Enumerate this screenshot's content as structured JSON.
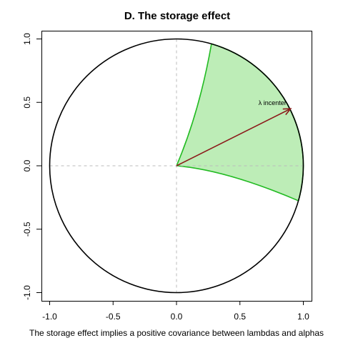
{
  "title": "D. The storage effect",
  "caption": "The storage effect implies a positive covariance between lambdas and alphas",
  "chart_data": {
    "type": "diagram",
    "xlim": [
      -1,
      1
    ],
    "ylim": [
      -1,
      1
    ],
    "x_ticks": [
      -1.0,
      -0.5,
      0.0,
      0.5,
      1.0
    ],
    "x_tick_labels": [
      "-1.0",
      "-0.5",
      "0.0",
      "0.5",
      "1.0"
    ],
    "y_ticks": [
      -1.0,
      -0.5,
      0.0,
      0.5,
      1.0
    ],
    "y_tick_labels": [
      "-1.0",
      "-0.5",
      "0.0",
      "0.5",
      "1.0"
    ],
    "unit_circle": {
      "center": [
        0,
        0
      ],
      "radius": 1
    },
    "reference_lines": {
      "x": 0,
      "y": 0,
      "style": "dashed"
    },
    "sector": {
      "label": "",
      "arc_start_deg": -16,
      "arc_end_deg": 74,
      "boundary_points": [
        [
          0,
          0
        ],
        [
          0.28,
          0.96
        ],
        [
          0.97,
          -0.28
        ]
      ],
      "fill": "#bdedb7",
      "stroke": "#22bb22"
    },
    "vector": {
      "label": "λ incenter",
      "from": [
        0,
        0
      ],
      "to": [
        0.9,
        0.45
      ],
      "color": "#8b1a1a"
    }
  },
  "colors": {
    "axis": "#000000",
    "grid": "#bbbbbb",
    "sector_fill": "#bdedb7",
    "sector_stroke": "#22bb22",
    "arrow": "#8b1a1a"
  }
}
